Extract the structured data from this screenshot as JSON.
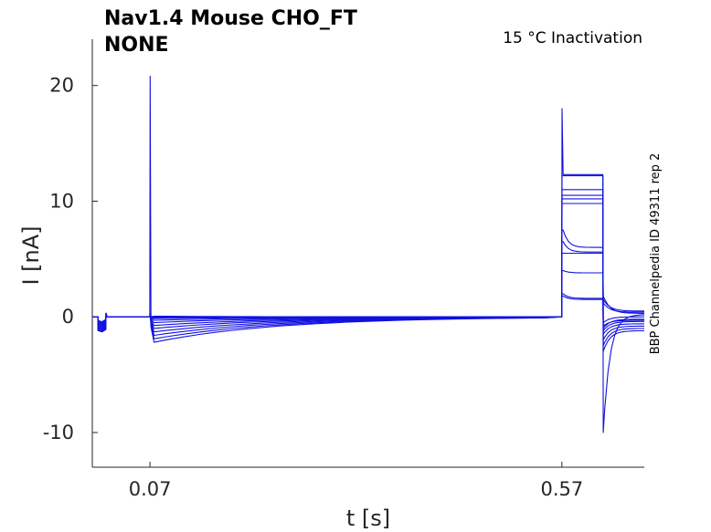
{
  "chart_data": {
    "type": "line",
    "title_line1": "Nav1.4  Mouse  CHO_FT",
    "title_line2": "NONE",
    "annotation": "15 °C  Inactivation",
    "side_label": "BBP Channelpedia ID 49311 rep 2",
    "xlabel": "t [s]",
    "ylabel": "I [nA]",
    "xlim": [
      0.0,
      0.67
    ],
    "ylim": [
      -13,
      24
    ],
    "xticks": [
      0.07,
      0.57
    ],
    "xtick_labels": [
      "0.07",
      "0.57"
    ],
    "yticks": [
      -10,
      0,
      10,
      20
    ],
    "ytick_labels": [
      "-10",
      "0",
      "10",
      "20"
    ],
    "line_color": "#1010e0",
    "grid": false,
    "series_params": {
      "early_peak": [
        20.8,
        0.3,
        0.2,
        0.2,
        0.2,
        0.2,
        0.2,
        0.2,
        0.2,
        0.2,
        0.2,
        0.2
      ],
      "hold_current": [
        -2.2,
        -1.9,
        -1.6,
        -1.3,
        -1.0,
        -0.75,
        -0.5,
        -0.3,
        -0.15,
        -0.05,
        0.0,
        0.05
      ],
      "step2_peak": [
        12.3,
        12.2,
        11.0,
        10.5,
        10.2,
        9.8,
        7.5,
        6.5,
        5.5,
        4.0,
        2.0,
        1.8
      ],
      "step2_steady": [
        12.3,
        12.2,
        11.0,
        10.5,
        10.2,
        9.8,
        6.0,
        5.6,
        5.5,
        3.8,
        1.6,
        1.5
      ],
      "tail_peak": [
        -10.0,
        -3.0,
        -2.5,
        -2.0,
        -1.5,
        -1.2,
        -1.0,
        1.8,
        1.5,
        1.2,
        -0.8,
        -0.5
      ],
      "tail_end": [
        0.2,
        -1.2,
        -1.0,
        -0.8,
        -0.6,
        -0.4,
        -0.2,
        0.3,
        0.5,
        0.4,
        -0.3,
        0.0
      ]
    }
  }
}
